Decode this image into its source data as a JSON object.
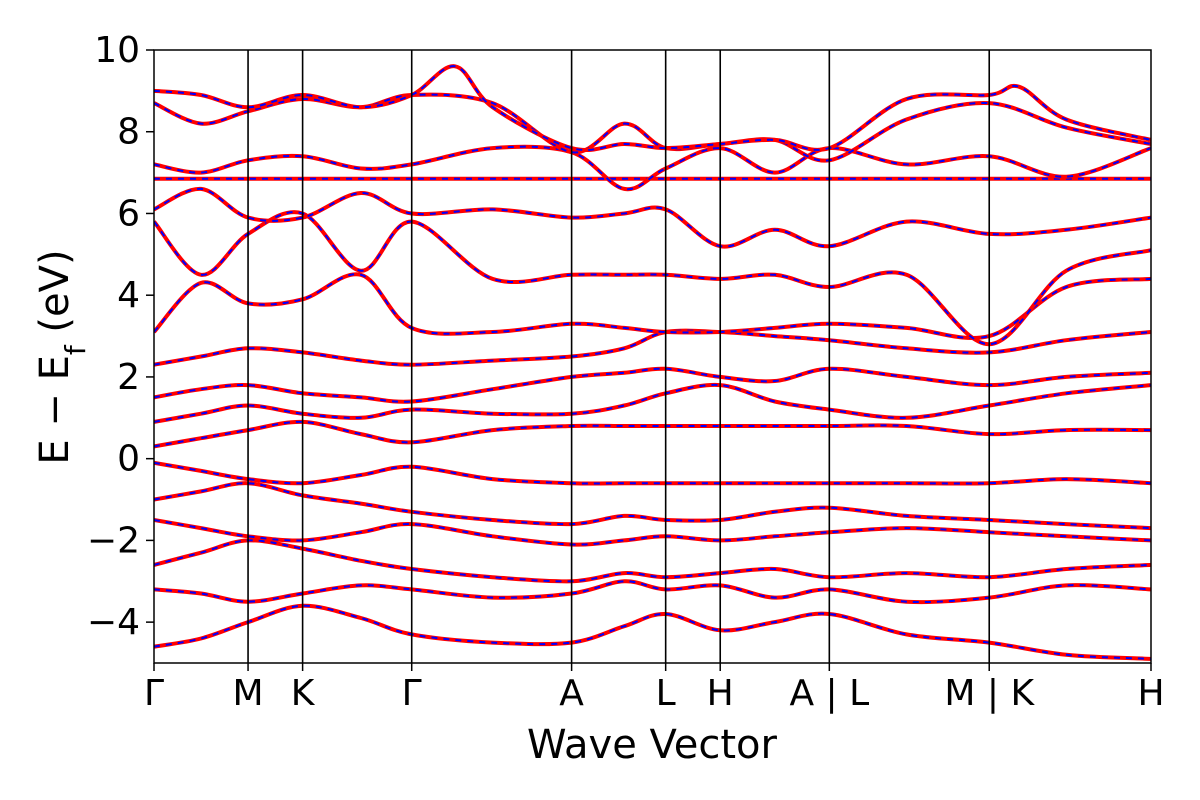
{
  "chart_data": {
    "type": "line",
    "title": "",
    "xlabel": "Wave Vector",
    "ylabel": "E − E",
    "ylabel_subscript": "f",
    "ylabel_unit": " (eV)",
    "ylim": [
      -5,
      10
    ],
    "yticks": [
      -4,
      -2,
      0,
      2,
      4,
      6,
      8,
      10
    ],
    "ytick_labels": [
      "−4",
      "−2",
      "0",
      "2",
      "4",
      "6",
      "8",
      "10"
    ],
    "xlim": [
      0,
      10.6
    ],
    "kpoint_positions": [
      0,
      1.0,
      1.58,
      2.74,
      4.44,
      5.44,
      6.02,
      7.18,
      8.88,
      10.6
    ],
    "kpoint_labels": [
      "Γ",
      "M",
      "K",
      "Γ",
      "A",
      "L",
      "H",
      "A | L",
      "M | K",
      "H"
    ],
    "grid": false,
    "legend": "none",
    "colors": {
      "band_primary": "#ff0000",
      "band_secondary": "#0000ff",
      "axes": "#000000"
    },
    "series": [
      {
        "x": [
          0,
          0.5,
          1.0,
          1.58,
          2.2,
          2.74,
          3.6,
          4.44,
          5.0,
          5.44,
          6.02,
          6.6,
          7.18,
          8.0,
          8.88,
          9.7,
          10.6
        ],
        "values": [
          -4.6,
          -4.4,
          -4.0,
          -3.6,
          -3.9,
          -4.3,
          -4.5,
          -4.5,
          -4.1,
          -3.8,
          -4.2,
          -4.0,
          -3.8,
          -4.3,
          -4.5,
          -4.8,
          -4.9
        ]
      },
      {
        "x": [
          0,
          0.5,
          1.0,
          1.58,
          2.2,
          2.74,
          3.6,
          4.44,
          5.0,
          5.44,
          6.02,
          6.6,
          7.18,
          8.0,
          8.88,
          9.7,
          10.6
        ],
        "values": [
          -3.2,
          -3.3,
          -3.5,
          -3.3,
          -3.1,
          -3.2,
          -3.4,
          -3.3,
          -3.0,
          -3.2,
          -3.1,
          -3.4,
          -3.2,
          -3.5,
          -3.4,
          -3.1,
          -3.2
        ]
      },
      {
        "x": [
          0,
          0.5,
          1.0,
          1.58,
          2.2,
          2.74,
          3.6,
          4.44,
          5.0,
          5.44,
          6.02,
          6.6,
          7.18,
          8.0,
          8.88,
          9.7,
          10.6
        ],
        "values": [
          -2.6,
          -2.3,
          -2.0,
          -2.2,
          -2.5,
          -2.7,
          -2.9,
          -3.0,
          -2.8,
          -2.9,
          -2.8,
          -2.7,
          -2.9,
          -2.8,
          -2.9,
          -2.7,
          -2.6
        ]
      },
      {
        "x": [
          0,
          0.5,
          1.0,
          1.58,
          2.2,
          2.74,
          3.6,
          4.44,
          5.0,
          5.44,
          6.02,
          6.6,
          7.18,
          8.0,
          8.88,
          9.7,
          10.6
        ],
        "values": [
          -1.5,
          -1.7,
          -1.9,
          -2.0,
          -1.8,
          -1.6,
          -1.9,
          -2.1,
          -2.0,
          -1.9,
          -2.0,
          -1.9,
          -1.8,
          -1.7,
          -1.8,
          -1.9,
          -2.0
        ]
      },
      {
        "x": [
          0,
          0.5,
          1.0,
          1.58,
          2.2,
          2.74,
          3.6,
          4.44,
          5.0,
          5.44,
          6.02,
          6.6,
          7.18,
          8.0,
          8.88,
          9.7,
          10.6
        ],
        "values": [
          -1.0,
          -0.8,
          -0.6,
          -0.9,
          -1.1,
          -1.3,
          -1.5,
          -1.6,
          -1.4,
          -1.5,
          -1.5,
          -1.3,
          -1.2,
          -1.4,
          -1.5,
          -1.6,
          -1.7
        ]
      },
      {
        "x": [
          0,
          0.5,
          1.0,
          1.58,
          2.2,
          2.74,
          3.6,
          4.44,
          5.0,
          5.44,
          6.02,
          6.6,
          7.18,
          8.0,
          8.88,
          9.7,
          10.6
        ],
        "values": [
          -0.1,
          -0.3,
          -0.5,
          -0.6,
          -0.4,
          -0.2,
          -0.5,
          -0.6,
          -0.6,
          -0.6,
          -0.6,
          -0.6,
          -0.6,
          -0.6,
          -0.6,
          -0.5,
          -0.6
        ]
      },
      {
        "x": [
          0,
          0.5,
          1.0,
          1.58,
          2.2,
          2.74,
          3.6,
          4.44,
          5.0,
          5.44,
          6.02,
          6.6,
          7.18,
          8.0,
          8.88,
          9.7,
          10.6
        ],
        "values": [
          0.3,
          0.5,
          0.7,
          0.9,
          0.6,
          0.4,
          0.7,
          0.8,
          0.8,
          0.8,
          0.8,
          0.8,
          0.8,
          0.8,
          0.6,
          0.7,
          0.7
        ]
      },
      {
        "x": [
          0,
          0.5,
          1.0,
          1.58,
          2.2,
          2.74,
          3.6,
          4.44,
          5.0,
          5.44,
          6.02,
          6.6,
          7.18,
          8.0,
          8.88,
          9.7,
          10.6
        ],
        "values": [
          0.9,
          1.1,
          1.3,
          1.1,
          1.0,
          1.2,
          1.1,
          1.1,
          1.3,
          1.6,
          1.8,
          1.4,
          1.2,
          1.0,
          1.3,
          1.6,
          1.8
        ]
      },
      {
        "x": [
          0,
          0.5,
          1.0,
          1.58,
          2.2,
          2.74,
          3.6,
          4.44,
          5.0,
          5.44,
          6.02,
          6.6,
          7.18,
          8.0,
          8.88,
          9.7,
          10.6
        ],
        "values": [
          1.5,
          1.7,
          1.8,
          1.6,
          1.5,
          1.4,
          1.7,
          2.0,
          2.1,
          2.2,
          2.0,
          1.9,
          2.2,
          2.0,
          1.8,
          2.0,
          2.1
        ]
      },
      {
        "x": [
          0,
          0.5,
          1.0,
          1.58,
          2.2,
          2.74,
          3.6,
          4.44,
          5.0,
          5.44,
          6.02,
          6.6,
          7.18,
          8.0,
          8.88,
          9.7,
          10.6
        ],
        "values": [
          2.3,
          2.5,
          2.7,
          2.6,
          2.4,
          2.3,
          2.4,
          2.5,
          2.7,
          3.1,
          3.1,
          3.0,
          2.9,
          2.7,
          2.6,
          2.9,
          3.1
        ]
      },
      {
        "x": [
          0,
          0.5,
          1.0,
          1.58,
          2.2,
          2.74,
          3.6,
          4.44,
          5.0,
          5.44,
          6.02,
          6.6,
          7.18,
          8.0,
          8.88,
          9.7,
          10.6
        ],
        "values": [
          3.1,
          4.3,
          3.8,
          3.9,
          4.5,
          3.2,
          3.1,
          3.3,
          3.2,
          3.1,
          3.1,
          3.2,
          3.3,
          3.2,
          3.0,
          4.2,
          4.4
        ]
      },
      {
        "x": [
          0,
          0.5,
          1.0,
          1.58,
          2.2,
          2.74,
          3.6,
          4.44,
          5.0,
          5.44,
          6.02,
          6.6,
          7.18,
          8.0,
          8.88,
          9.7,
          10.6
        ],
        "values": [
          5.8,
          4.5,
          5.5,
          6.0,
          4.6,
          5.8,
          4.4,
          4.5,
          4.5,
          4.5,
          4.4,
          4.5,
          4.2,
          4.5,
          2.8,
          4.6,
          5.1
        ]
      },
      {
        "x": [
          0,
          0.5,
          1.0,
          1.58,
          2.2,
          2.74,
          3.6,
          4.44,
          5.0,
          5.44,
          6.02,
          6.6,
          7.18,
          8.0,
          8.88,
          9.7,
          10.6
        ],
        "values": [
          6.1,
          6.6,
          5.9,
          5.9,
          6.5,
          6.0,
          6.1,
          5.9,
          6.0,
          6.1,
          5.2,
          5.6,
          5.2,
          5.8,
          5.5,
          5.6,
          5.9
        ]
      },
      {
        "x": [
          0,
          0.5,
          1.0,
          1.58,
          2.2,
          2.74,
          3.6,
          4.44,
          5.0,
          5.44,
          6.02,
          6.6,
          7.18,
          8.0,
          8.88,
          9.7,
          10.6
        ],
        "values": [
          6.85,
          6.85,
          6.85,
          6.85,
          6.85,
          6.85,
          6.85,
          6.85,
          6.85,
          6.85,
          6.85,
          6.85,
          6.85,
          6.85,
          6.85,
          6.85,
          6.85
        ]
      },
      {
        "x": [
          0,
          0.5,
          1.0,
          1.58,
          2.2,
          2.74,
          3.6,
          4.44,
          5.0,
          5.44,
          6.02,
          6.6,
          7.18,
          8.0,
          8.88,
          9.7,
          10.6
        ],
        "values": [
          7.2,
          7.0,
          7.3,
          7.4,
          7.1,
          7.2,
          7.6,
          7.5,
          6.6,
          7.1,
          7.6,
          7.0,
          7.6,
          7.2,
          7.4,
          6.9,
          7.6
        ]
      },
      {
        "x": [
          0,
          0.5,
          1.0,
          1.58,
          2.2,
          2.74,
          3.6,
          4.44,
          5.0,
          5.44,
          6.02,
          6.6,
          7.18,
          8.0,
          8.88,
          9.7,
          10.6
        ],
        "values": [
          8.7,
          8.2,
          8.5,
          8.8,
          8.6,
          8.9,
          8.7,
          7.5,
          8.2,
          7.6,
          7.7,
          7.8,
          7.3,
          8.3,
          8.7,
          8.1,
          7.7
        ]
      },
      {
        "x": [
          0,
          0.5,
          1.0,
          1.58,
          2.2,
          2.74,
          3.2,
          3.6,
          4.44,
          5.0,
          5.44,
          6.02,
          6.6,
          7.18,
          8.0,
          8.88,
          9.2,
          9.7,
          10.6
        ],
        "values": [
          9.0,
          8.9,
          8.6,
          8.9,
          8.6,
          8.9,
          9.6,
          8.6,
          7.6,
          7.7,
          7.6,
          7.7,
          7.8,
          7.6,
          8.8,
          8.9,
          9.1,
          8.3,
          7.8
        ]
      }
    ]
  }
}
